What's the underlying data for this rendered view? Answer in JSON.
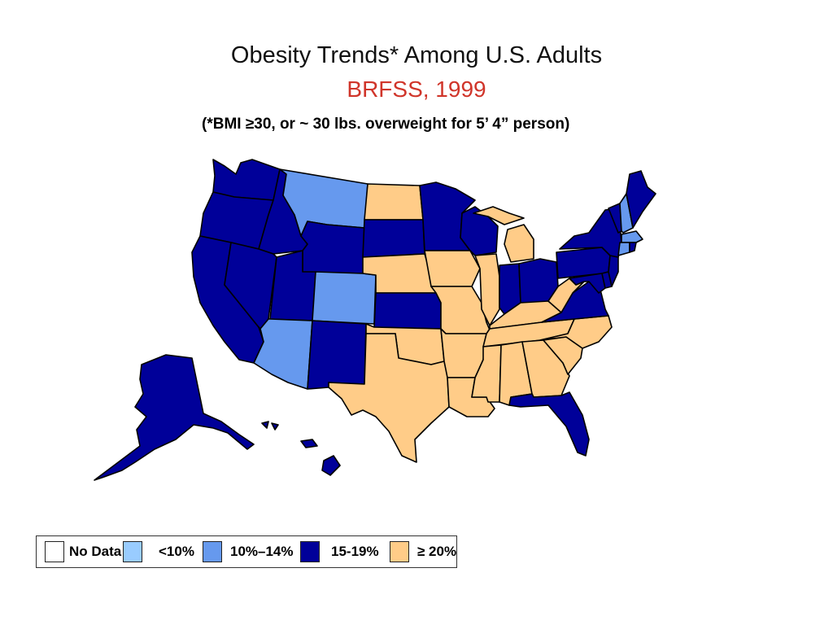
{
  "title": "Obesity Trends* Among U.S. Adults",
  "subtitle": "BRFSS, 1999",
  "note": "(*BMI ≥30, or ~ 30 lbs. overweight for 5’ 4” person)",
  "colors": {
    "subtitle": "#d0352a",
    "no_data": "#ffffff",
    "lt10": "#99ccff",
    "c10_14": "#6699ee",
    "c15_19": "#000099",
    "ge20": "#ffcc88"
  },
  "legend": [
    {
      "label": "No Data",
      "key": "no_data"
    },
    {
      "label": "<10%",
      "key": "lt10"
    },
    {
      "label": "10%–14%",
      "key": "c10_14"
    },
    {
      "label": "15-19%",
      "key": "c15_19"
    },
    {
      "label": "≥ 20%",
      "key": "ge20"
    }
  ],
  "state_categories": {
    "washington": "c15_19",
    "oregon": "c15_19",
    "california": "c15_19",
    "idaho": "c15_19",
    "nevada": "c15_19",
    "montana": "c10_14",
    "wyoming": "c15_19",
    "utah": "c15_19",
    "arizona": "c10_14",
    "colorado": "c10_14",
    "new-mexico": "c15_19",
    "north-dakota": "ge20",
    "south-dakota": "c15_19",
    "nebraska": "ge20",
    "kansas": "c15_19",
    "oklahoma": "ge20",
    "texas": "ge20",
    "minnesota": "c15_19",
    "iowa": "ge20",
    "missouri": "ge20",
    "arkansas": "ge20",
    "louisiana": "ge20",
    "wisconsin": "c15_19",
    "illinois": "ge20",
    "michigan": "ge20",
    "indiana": "c15_19",
    "ohio": "c15_19",
    "kentucky": "ge20",
    "tennessee": "ge20",
    "mississippi": "ge20",
    "alabama": "ge20",
    "georgia": "ge20",
    "florida": "c15_19",
    "south-carolina": "ge20",
    "north-carolina": "ge20",
    "virginia": "c15_19",
    "west-virginia": "ge20",
    "maryland": "c15_19",
    "delaware": "c15_19",
    "new-jersey": "c15_19",
    "pennsylvania": "c15_19",
    "new-york": "c15_19",
    "vermont": "c15_19",
    "new-hampshire": "c10_14",
    "maine": "c15_19",
    "massachusetts": "c10_14",
    "connecticut": "c10_14",
    "rhode-island": "c15_19",
    "alaska": "c15_19",
    "hawaii": "c15_19"
  }
}
